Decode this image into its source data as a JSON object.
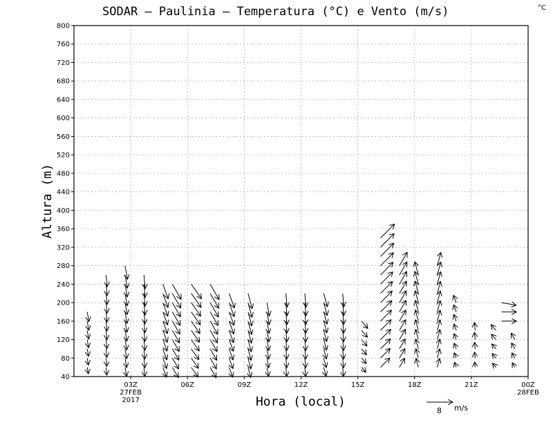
{
  "chart_data": {
    "type": "wind-barb profile (vectors vs time and height)",
    "title": "SODAR – Paulinia – Temperatura (°C) e Vento (m/s)",
    "unit_corner": "°C",
    "xlabel": "Hora (local)",
    "ylabel": "Altura (m)",
    "xlim_hours_utc": [
      0,
      24
    ],
    "ylim": [
      40,
      800
    ],
    "y_ticks": [
      40,
      80,
      120,
      160,
      200,
      240,
      280,
      320,
      360,
      400,
      440,
      480,
      520,
      560,
      600,
      640,
      680,
      720,
      760,
      800
    ],
    "x_ticks": [
      {
        "hour": 3,
        "label": "03Z",
        "date": "27FEB",
        "year": "2017"
      },
      {
        "hour": 6,
        "label": "06Z"
      },
      {
        "hour": 9,
        "label": "09Z"
      },
      {
        "hour": 12,
        "label": "12Z"
      },
      {
        "hour": 15,
        "label": "15Z"
      },
      {
        "hour": 18,
        "label": "18Z"
      },
      {
        "hour": 21,
        "label": "21Z"
      },
      {
        "hour": 24,
        "label": "00Z",
        "date": "28FEB"
      }
    ],
    "grid": "dashed gray, light",
    "reference_vector": {
      "speed": "8",
      "unit": "m/s"
    },
    "wind_profiles_note": "each column: hour (UTC), lowest/top height (m) of the profile, speed (m/s) and direction the arrow points (deg, 0 = up/north, clockwise)",
    "wind_profiles": [
      {
        "hour": 0.7,
        "h_min": 60,
        "h_max": 180,
        "speed": 2.5,
        "dir_to": 170
      },
      {
        "hour": 1.7,
        "h_min": 60,
        "h_max": 260,
        "speed": 3.0,
        "dir_to": 175
      },
      {
        "hour": 2.7,
        "h_min": 60,
        "h_max": 280,
        "speed": 3.5,
        "dir_to": 170
      },
      {
        "hour": 3.7,
        "h_min": 60,
        "h_max": 260,
        "speed": 3.5,
        "dir_to": 175
      },
      {
        "hour": 4.7,
        "h_min": 60,
        "h_max": 250,
        "speed": 4.0,
        "dir_to": 160
      },
      {
        "hour": 5.2,
        "h_min": 60,
        "h_max": 250,
        "speed": 4.5,
        "dir_to": 150
      },
      {
        "hour": 6.2,
        "h_min": 60,
        "h_max": 240,
        "speed": 4.5,
        "dir_to": 145
      },
      {
        "hour": 7.2,
        "h_min": 60,
        "h_max": 240,
        "speed": 4.5,
        "dir_to": 150
      },
      {
        "hour": 8.2,
        "h_min": 60,
        "h_max": 230,
        "speed": 4.0,
        "dir_to": 160
      },
      {
        "hour": 9.2,
        "h_min": 60,
        "h_max": 220,
        "speed": 4.0,
        "dir_to": 165
      },
      {
        "hour": 10.2,
        "h_min": 60,
        "h_max": 210,
        "speed": 3.5,
        "dir_to": 170
      },
      {
        "hour": 11.2,
        "h_min": 60,
        "h_max": 220,
        "speed": 3.5,
        "dir_to": 175
      },
      {
        "hour": 12.2,
        "h_min": 60,
        "h_max": 220,
        "speed": 3.5,
        "dir_to": 175
      },
      {
        "hour": 13.2,
        "h_min": 60,
        "h_max": 220,
        "speed": 3.5,
        "dir_to": 165
      },
      {
        "hour": 14.2,
        "h_min": 60,
        "h_max": 230,
        "speed": 3.5,
        "dir_to": 175
      },
      {
        "hour": 15.2,
        "h_min": 60,
        "h_max": 170,
        "speed": 2.5,
        "dir_to": 140
      },
      {
        "hour": 16.2,
        "h_min": 60,
        "h_max": 340,
        "speed": 5.0,
        "dir_to": 45
      },
      {
        "hour": 17.2,
        "h_min": 60,
        "h_max": 290,
        "speed": 4.0,
        "dir_to": 30
      },
      {
        "hour": 18.2,
        "h_min": 60,
        "h_max": 270,
        "speed": 3.5,
        "dir_to": 345
      },
      {
        "hour": 19.2,
        "h_min": 60,
        "h_max": 280,
        "speed": 3.5,
        "dir_to": 15
      },
      {
        "hour": 20.2,
        "h_min": 60,
        "h_max": 200,
        "speed": 2.0,
        "dir_to": 340
      },
      {
        "hour": 21.2,
        "h_min": 60,
        "h_max": 140,
        "speed": 2.0,
        "dir_to": 355
      },
      {
        "hour": 22.3,
        "h_min": 60,
        "h_max": 150,
        "speed": 2.0,
        "dir_to": 320
      },
      {
        "hour": 23.3,
        "h_min": 60,
        "h_max": 130,
        "speed": 2.0,
        "dir_to": 330
      }
    ],
    "upper_extra_vectors_note": "additional arrows at the top of the late-evening profiles (hour, height m, speed m/s, direction deg)",
    "upper_extra_vectors": [
      {
        "hour": 22.6,
        "h": 200,
        "speed": 4.5,
        "dir_to": 100
      },
      {
        "hour": 22.6,
        "h": 180,
        "speed": 4.5,
        "dir_to": 90
      },
      {
        "hour": 22.6,
        "h": 160,
        "speed": 4.5,
        "dir_to": 90
      }
    ]
  }
}
